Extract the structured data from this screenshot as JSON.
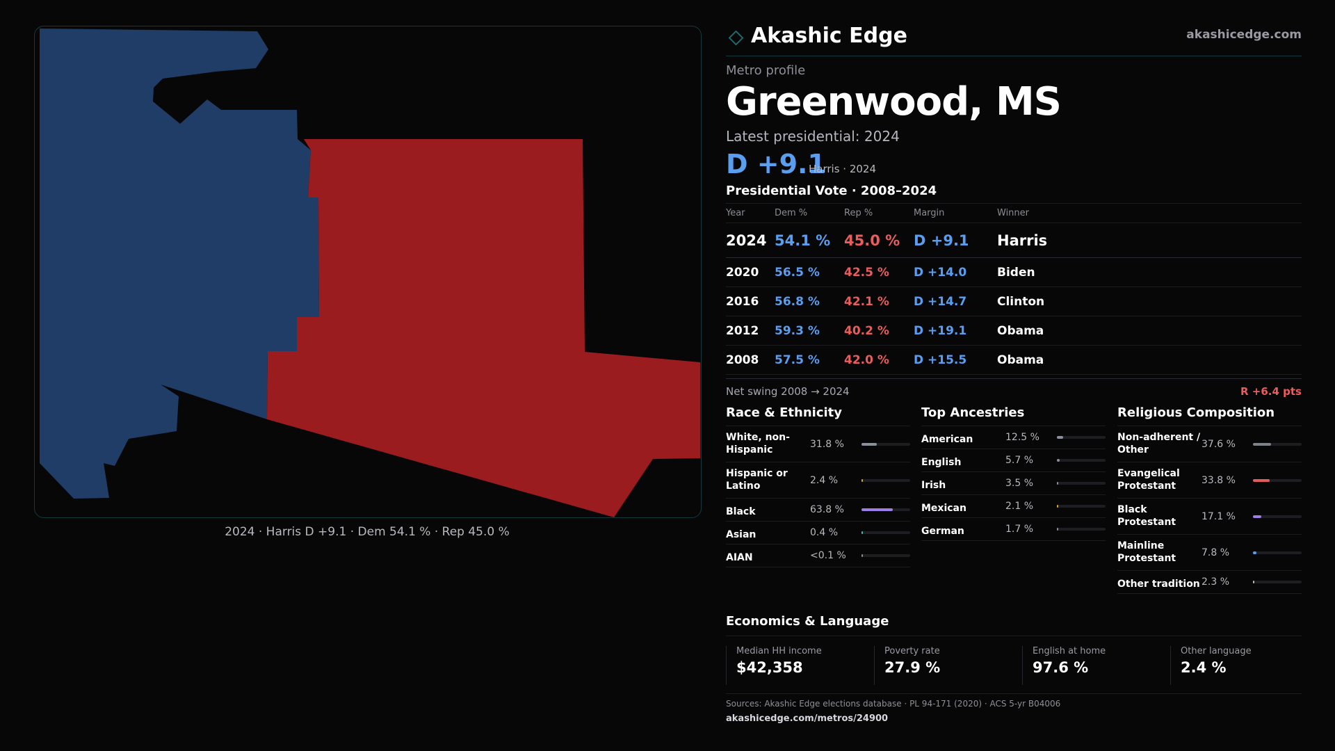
{
  "brand": {
    "name": "Akashic Edge",
    "url": "akashicedge.com",
    "icon": "diamond-icon",
    "accent": "#1d6d73"
  },
  "map": {
    "caption": "2024 · Harris D +9.1 · Dem 54.1 % · Rep 45.0 %",
    "dem_color": "#1f3d66",
    "rep_color": "#9b1c1f"
  },
  "profile": {
    "eyebrow": "Metro profile",
    "title": "Greenwood, MS",
    "latest_label": "Latest presidential: 2024",
    "headline_margin": "D +9.1",
    "headline_sub": "Harris · 2024"
  },
  "vote_table": {
    "title": "Presidential Vote · 2008–2024",
    "headers": {
      "year": "Year",
      "dem": "Dem %",
      "rep": "Rep %",
      "margin": "Margin",
      "winner": "Winner"
    },
    "rows": [
      {
        "year": "2024",
        "dem": "54.1 %",
        "rep": "45.0 %",
        "margin": "D +9.1",
        "winner": "Harris"
      },
      {
        "year": "2020",
        "dem": "56.5 %",
        "rep": "42.5 %",
        "margin": "D +14.0",
        "winner": "Biden"
      },
      {
        "year": "2016",
        "dem": "56.8 %",
        "rep": "42.1 %",
        "margin": "D +14.7",
        "winner": "Clinton"
      },
      {
        "year": "2012",
        "dem": "59.3 %",
        "rep": "40.2 %",
        "margin": "D +19.1",
        "winner": "Obama"
      },
      {
        "year": "2008",
        "dem": "57.5 %",
        "rep": "42.0 %",
        "margin": "D +15.5",
        "winner": "Obama"
      }
    ],
    "dem_color": "#5a9ef0",
    "rep_color": "#ea5d5d"
  },
  "swing": {
    "label": "Net swing 2008 → 2024",
    "value": "R +6.4 pts"
  },
  "race": {
    "title": "Race & Ethnicity",
    "items": [
      {
        "label": "White, non-Hispanic",
        "value": "31.8 %",
        "share": 0.318,
        "color": "#8a8f9c"
      },
      {
        "label": "Hispanic or Latino",
        "value": "2.4 %",
        "share": 0.024,
        "color": "#e0a32c"
      },
      {
        "label": "Black",
        "value": "63.8 %",
        "share": 0.638,
        "color": "#9b7ee8"
      },
      {
        "label": "Asian",
        "value": "0.4 %",
        "share": 0.004,
        "color": "#4fb6b2"
      },
      {
        "label": "AIAN",
        "value": "<0.1 %",
        "share": 0.0,
        "color": "#8a8f9c"
      }
    ]
  },
  "ancestries": {
    "title": "Top Ancestries",
    "items": [
      {
        "label": "American",
        "value": "12.5 %",
        "share": 0.125,
        "color": "#8a8f9c"
      },
      {
        "label": "English",
        "value": "5.7 %",
        "share": 0.057,
        "color": "#8a8f9c"
      },
      {
        "label": "Irish",
        "value": "3.5 %",
        "share": 0.035,
        "color": "#8a8f9c"
      },
      {
        "label": "Mexican",
        "value": "2.1 %",
        "share": 0.021,
        "color": "#e0a32c"
      },
      {
        "label": "German",
        "value": "1.7 %",
        "share": 0.017,
        "color": "#8a8f9c"
      }
    ]
  },
  "religion": {
    "title": "Religious Composition",
    "items": [
      {
        "label": "Non-adherent / Other",
        "value": "37.6 %",
        "share": 0.376,
        "color": "#7d818c"
      },
      {
        "label": "Evangelical Protestant",
        "value": "33.8 %",
        "share": 0.338,
        "color": "#e05b5b"
      },
      {
        "label": "Black Protestant",
        "value": "17.1 %",
        "share": 0.171,
        "color": "#9b7ee8"
      },
      {
        "label": "Mainline Protestant",
        "value": "7.8 %",
        "share": 0.078,
        "color": "#5a9ef0"
      },
      {
        "label": "Other tradition",
        "value": "2.3 %",
        "share": 0.023,
        "color": "#b9b9bf"
      }
    ]
  },
  "economics": {
    "title": "Economics & Language",
    "cards": [
      {
        "label": "Median HH income",
        "value": "$42,358"
      },
      {
        "label": "Poverty rate",
        "value": "27.9 %"
      },
      {
        "label": "English at home",
        "value": "97.6 %"
      },
      {
        "label": "Other language",
        "value": "2.4 %"
      }
    ]
  },
  "sources": {
    "text": "Sources: Akashic Edge elections database · PL 94-171 (2020) · ACS 5-yr B04006",
    "url": "akashicedge.com/metros/24900"
  }
}
